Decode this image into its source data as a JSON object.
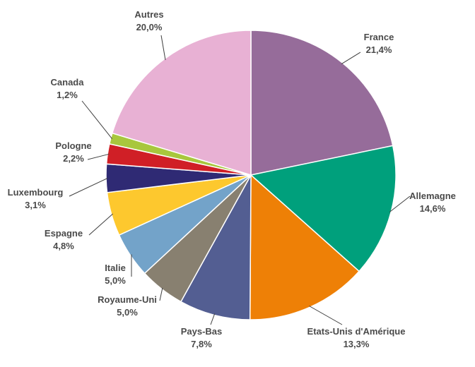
{
  "chart_data": {
    "type": "pie",
    "title": "",
    "categories": [
      "France",
      "Allemagne",
      "Etats-Unis d'Amérique",
      "Pays-Bas",
      "Royaume-Uni",
      "Italie",
      "Espagne",
      "Luxembourg",
      "Pologne",
      "Canada",
      "Autres"
    ],
    "values": [
      21.4,
      14.6,
      13.3,
      7.8,
      5.0,
      5.0,
      4.8,
      3.1,
      2.2,
      1.2,
      20.0
    ],
    "value_labels": [
      "21,4%",
      "14,6%",
      "13,3%",
      "7,8%",
      "5,0%",
      "5,0%",
      "4,8%",
      "3,1%",
      "2,2%",
      "1,2%",
      "20,0%"
    ],
    "colors": [
      "#966c9a",
      "#00a07c",
      "#ee8006",
      "#535e92",
      "#888070",
      "#73a3c9",
      "#fdc82e",
      "#2f2a74",
      "#d01f26",
      "#a8c73d",
      "#e8b1d4"
    ],
    "start_angle_deg": 0,
    "direction": "clockwise",
    "legend": "none"
  }
}
